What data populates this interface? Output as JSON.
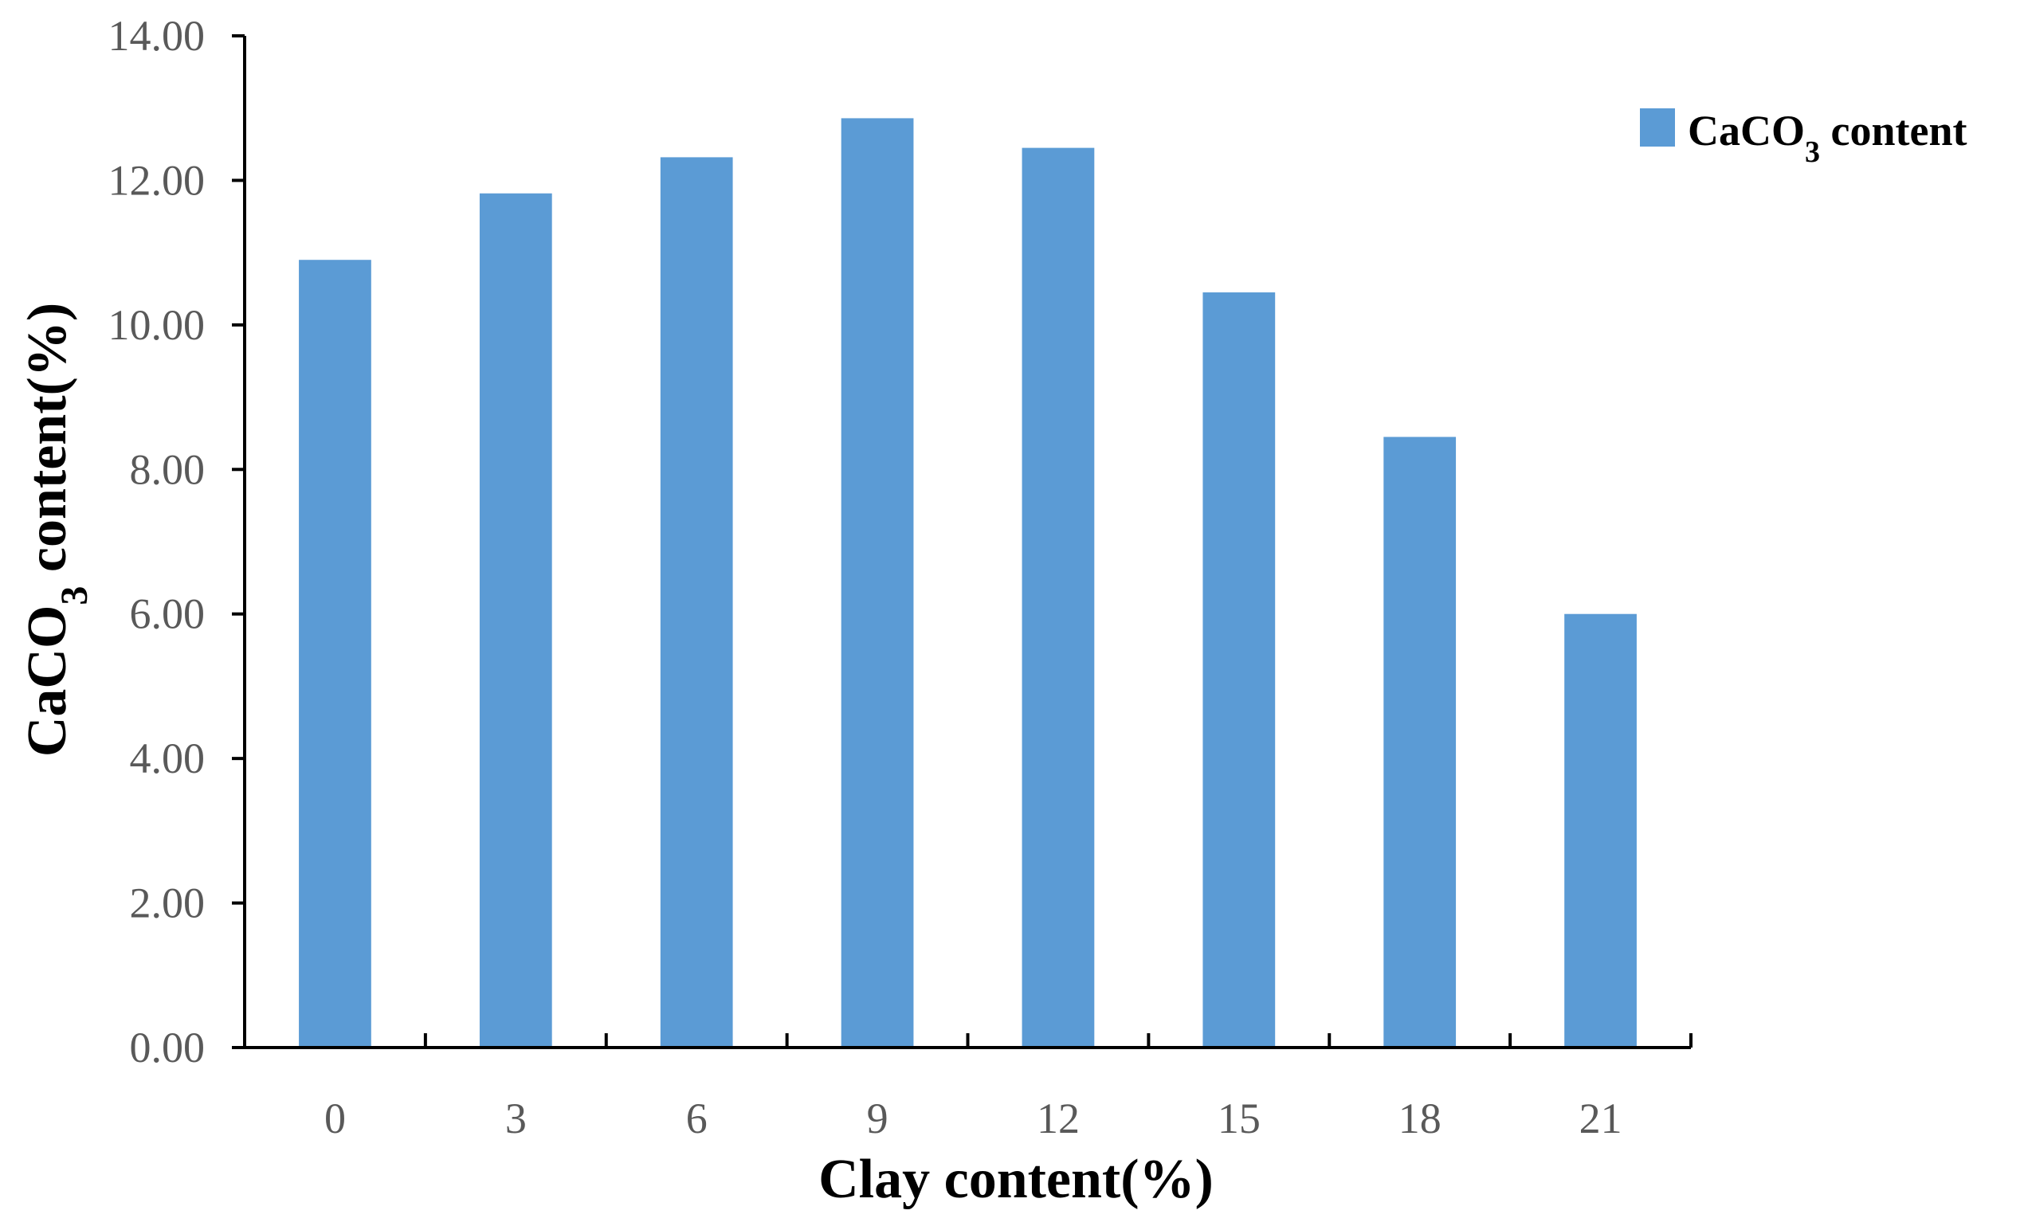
{
  "chart_data": {
    "type": "bar",
    "categories": [
      "0",
      "3",
      "6",
      "9",
      "12",
      "15",
      "18",
      "21"
    ],
    "series": [
      {
        "name": "CaCO₃ content",
        "name_main": "CaCO",
        "name_sub": "3",
        "name_rest": " content",
        "values": [
          10.9,
          11.82,
          12.32,
          12.86,
          12.45,
          10.45,
          8.45,
          6.0
        ],
        "color": "#5b9bd5"
      }
    ],
    "xlabel": "Clay content(%)",
    "ylabel": "CaCO₃ content(%)",
    "ylabel_main": "CaCO",
    "ylabel_sub": "3",
    "ylabel_rest": " content(%)",
    "ylim": [
      0,
      14
    ],
    "yticks": [
      "0.00",
      "2.00",
      "4.00",
      "6.00",
      "8.00",
      "10.00",
      "12.00",
      "14.00"
    ],
    "grid": false,
    "legend_position": "top-right"
  }
}
